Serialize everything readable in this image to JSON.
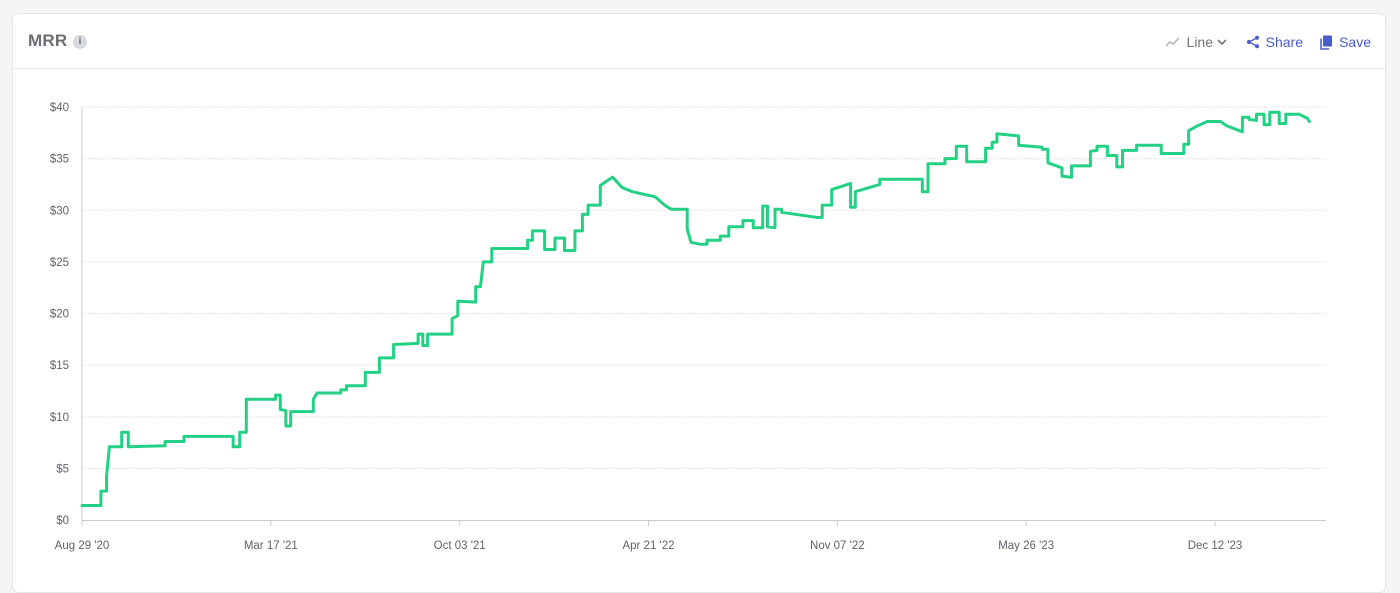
{
  "header": {
    "title": "MRR",
    "info_glyph": "i",
    "chart_type_label": "Line",
    "share_label": "Share",
    "save_label": "Save"
  },
  "icons": {
    "info": "info-icon",
    "chart_type": "line-chart-icon",
    "dropdown": "chevron-down-icon",
    "share": "share-icon",
    "save": "save-icon"
  },
  "colors": {
    "line": "#22d183",
    "accent": "#4a5cc9",
    "grid": "#dcdde0"
  },
  "chart_data": {
    "type": "line",
    "title": "",
    "xlabel": "",
    "ylabel": "",
    "ylim": [
      0,
      40
    ],
    "yticks": [
      "$0",
      "$5",
      "$10",
      "$15",
      "$20",
      "$25",
      "$30",
      "$35",
      "$40"
    ],
    "xticks": [
      "Aug 29 '20",
      "Mar 17 '21",
      "Oct 03 '21",
      "Apr 21 '22",
      "Nov 07 '22",
      "May 26 '23",
      "Dec 12 '23"
    ],
    "xtick_dates": [
      "2020-08-29",
      "2021-03-17",
      "2021-10-03",
      "2022-04-21",
      "2022-11-07",
      "2023-05-26",
      "2023-12-12"
    ],
    "grid": true,
    "series": [
      {
        "points": [
          [
            "2020-08-29",
            1.4
          ],
          [
            "2020-09-18",
            1.4
          ],
          [
            "2020-09-18",
            2.8
          ],
          [
            "2020-09-24",
            2.8
          ],
          [
            "2020-09-24",
            4.2
          ],
          [
            "2020-09-27",
            7.1
          ],
          [
            "2020-10-10",
            7.1
          ],
          [
            "2020-10-10",
            8.5
          ],
          [
            "2020-10-17",
            8.5
          ],
          [
            "2020-10-17",
            7.1
          ],
          [
            "2020-11-25",
            7.2
          ],
          [
            "2020-11-25",
            7.6
          ],
          [
            "2020-12-15",
            7.6
          ],
          [
            "2020-12-15",
            8.1
          ],
          [
            "2021-02-05",
            8.1
          ],
          [
            "2021-02-05",
            7.1
          ],
          [
            "2021-02-12",
            7.1
          ],
          [
            "2021-02-12",
            8.5
          ],
          [
            "2021-02-19",
            8.5
          ],
          [
            "2021-02-19",
            11.7
          ],
          [
            "2021-03-22",
            11.7
          ],
          [
            "2021-03-22",
            12.1
          ],
          [
            "2021-03-27",
            12.1
          ],
          [
            "2021-03-27",
            10.7
          ],
          [
            "2021-04-02",
            10.6
          ],
          [
            "2021-04-02",
            9.1
          ],
          [
            "2021-04-07",
            9.1
          ],
          [
            "2021-04-07",
            10.5
          ],
          [
            "2021-05-01",
            10.5
          ],
          [
            "2021-05-01",
            11.7
          ],
          [
            "2021-05-05",
            12.3
          ],
          [
            "2021-05-30",
            12.3
          ],
          [
            "2021-05-30",
            12.6
          ],
          [
            "2021-06-05",
            12.6
          ],
          [
            "2021-06-05",
            13.0
          ],
          [
            "2021-06-25",
            13.0
          ],
          [
            "2021-06-25",
            14.3
          ],
          [
            "2021-07-10",
            14.3
          ],
          [
            "2021-07-10",
            15.7
          ],
          [
            "2021-07-25",
            15.7
          ],
          [
            "2021-07-25",
            17.0
          ],
          [
            "2021-08-20",
            17.1
          ],
          [
            "2021-08-20",
            18.0
          ],
          [
            "2021-08-25",
            18.0
          ],
          [
            "2021-08-25",
            16.9
          ],
          [
            "2021-08-30",
            16.9
          ],
          [
            "2021-08-30",
            18.0
          ],
          [
            "2021-09-25",
            18.0
          ],
          [
            "2021-09-25",
            19.5
          ],
          [
            "2021-10-01",
            19.8
          ],
          [
            "2021-10-01",
            21.2
          ],
          [
            "2021-10-20",
            21.1
          ],
          [
            "2021-10-20",
            22.6
          ],
          [
            "2021-10-25",
            22.6
          ],
          [
            "2021-10-28",
            25.0
          ],
          [
            "2021-11-06",
            25.0
          ],
          [
            "2021-11-06",
            26.3
          ],
          [
            "2021-12-14",
            26.3
          ],
          [
            "2021-12-14",
            27.1
          ],
          [
            "2021-12-19",
            27.1
          ],
          [
            "2021-12-19",
            28.0
          ],
          [
            "2022-01-01",
            28.0
          ],
          [
            "2022-01-01",
            26.2
          ],
          [
            "2022-01-12",
            26.2
          ],
          [
            "2022-01-12",
            27.3
          ],
          [
            "2022-01-22",
            27.3
          ],
          [
            "2022-01-22",
            26.1
          ],
          [
            "2022-02-02",
            26.1
          ],
          [
            "2022-02-02",
            28.0
          ],
          [
            "2022-02-10",
            28.0
          ],
          [
            "2022-02-10",
            29.6
          ],
          [
            "2022-02-16",
            29.6
          ],
          [
            "2022-02-16",
            30.5
          ],
          [
            "2022-03-01",
            30.5
          ],
          [
            "2022-03-01",
            32.4
          ],
          [
            "2022-03-09",
            32.9
          ],
          [
            "2022-03-14",
            33.2
          ],
          [
            "2022-03-24",
            32.2
          ],
          [
            "2022-04-04",
            31.8
          ],
          [
            "2022-04-28",
            31.3
          ],
          [
            "2022-05-08",
            30.5
          ],
          [
            "2022-05-15",
            30.1
          ],
          [
            "2022-06-01",
            30.1
          ],
          [
            "2022-06-01",
            28.2
          ],
          [
            "2022-06-05",
            26.9
          ],
          [
            "2022-06-15",
            26.7
          ],
          [
            "2022-06-22",
            26.7
          ],
          [
            "2022-06-22",
            27.1
          ],
          [
            "2022-07-06",
            27.1
          ],
          [
            "2022-07-06",
            27.5
          ],
          [
            "2022-07-15",
            27.5
          ],
          [
            "2022-07-15",
            28.4
          ],
          [
            "2022-07-30",
            28.4
          ],
          [
            "2022-07-30",
            29.0
          ],
          [
            "2022-08-10",
            29.0
          ],
          [
            "2022-08-10",
            28.3
          ],
          [
            "2022-08-20",
            28.3
          ],
          [
            "2022-08-20",
            30.4
          ],
          [
            "2022-08-25",
            30.4
          ],
          [
            "2022-08-25",
            28.4
          ],
          [
            "2022-09-02",
            28.3
          ],
          [
            "2022-09-02",
            30.1
          ],
          [
            "2022-09-09",
            30.1
          ],
          [
            "2022-09-09",
            29.8
          ],
          [
            "2022-10-17",
            29.3
          ],
          [
            "2022-10-22",
            29.3
          ],
          [
            "2022-10-22",
            30.5
          ],
          [
            "2022-11-01",
            30.5
          ],
          [
            "2022-11-01",
            32.0
          ],
          [
            "2022-11-21",
            32.6
          ],
          [
            "2022-11-21",
            30.3
          ],
          [
            "2022-11-26",
            30.3
          ],
          [
            "2022-11-26",
            31.8
          ],
          [
            "2022-12-22",
            32.5
          ],
          [
            "2022-12-22",
            33.0
          ],
          [
            "2023-02-05",
            33.0
          ],
          [
            "2023-02-05",
            31.8
          ],
          [
            "2023-02-11",
            31.8
          ],
          [
            "2023-02-11",
            34.5
          ],
          [
            "2023-03-01",
            34.5
          ],
          [
            "2023-03-01",
            35.0
          ],
          [
            "2023-03-13",
            35.0
          ],
          [
            "2023-03-13",
            36.2
          ],
          [
            "2023-03-24",
            36.2
          ],
          [
            "2023-03-24",
            34.7
          ],
          [
            "2023-04-13",
            34.7
          ],
          [
            "2023-04-13",
            36.0
          ],
          [
            "2023-04-20",
            36.0
          ],
          [
            "2023-04-20",
            36.6
          ],
          [
            "2023-04-25",
            36.6
          ],
          [
            "2023-04-25",
            37.4
          ],
          [
            "2023-05-18",
            37.2
          ],
          [
            "2023-05-18",
            36.3
          ],
          [
            "2023-06-12",
            36.1
          ],
          [
            "2023-06-12",
            35.9
          ],
          [
            "2023-06-18",
            35.9
          ],
          [
            "2023-06-18",
            34.6
          ],
          [
            "2023-07-03",
            34.1
          ],
          [
            "2023-07-03",
            33.3
          ],
          [
            "2023-07-13",
            33.2
          ],
          [
            "2023-07-13",
            34.3
          ],
          [
            "2023-08-02",
            34.3
          ],
          [
            "2023-08-02",
            35.7
          ],
          [
            "2023-08-09",
            35.8
          ],
          [
            "2023-08-09",
            36.2
          ],
          [
            "2023-08-20",
            36.2
          ],
          [
            "2023-08-20",
            35.3
          ],
          [
            "2023-08-30",
            35.3
          ],
          [
            "2023-08-30",
            34.2
          ],
          [
            "2023-09-05",
            34.2
          ],
          [
            "2023-09-05",
            35.8
          ],
          [
            "2023-09-20",
            35.8
          ],
          [
            "2023-09-20",
            36.3
          ],
          [
            "2023-10-16",
            36.3
          ],
          [
            "2023-10-16",
            35.5
          ],
          [
            "2023-11-09",
            35.5
          ],
          [
            "2023-11-09",
            36.4
          ],
          [
            "2023-11-14",
            36.4
          ],
          [
            "2023-11-14",
            37.7
          ],
          [
            "2023-11-24",
            38.2
          ],
          [
            "2023-12-04",
            38.6
          ],
          [
            "2023-12-18",
            38.6
          ],
          [
            "2023-12-24",
            38.2
          ],
          [
            "2024-01-10",
            37.6
          ],
          [
            "2024-01-10",
            39.0
          ],
          [
            "2024-01-17",
            39.0
          ],
          [
            "2024-01-17",
            38.8
          ],
          [
            "2024-01-25",
            38.7
          ],
          [
            "2024-01-25",
            39.3
          ],
          [
            "2024-02-02",
            39.3
          ],
          [
            "2024-02-02",
            38.3
          ],
          [
            "2024-02-08",
            38.3
          ],
          [
            "2024-02-08",
            39.5
          ],
          [
            "2024-02-18",
            39.5
          ],
          [
            "2024-02-18",
            38.4
          ],
          [
            "2024-02-25",
            38.4
          ],
          [
            "2024-02-25",
            39.3
          ],
          [
            "2024-03-10",
            39.3
          ],
          [
            "2024-03-19",
            38.9
          ],
          [
            "2024-03-21",
            38.6
          ]
        ]
      }
    ]
  }
}
